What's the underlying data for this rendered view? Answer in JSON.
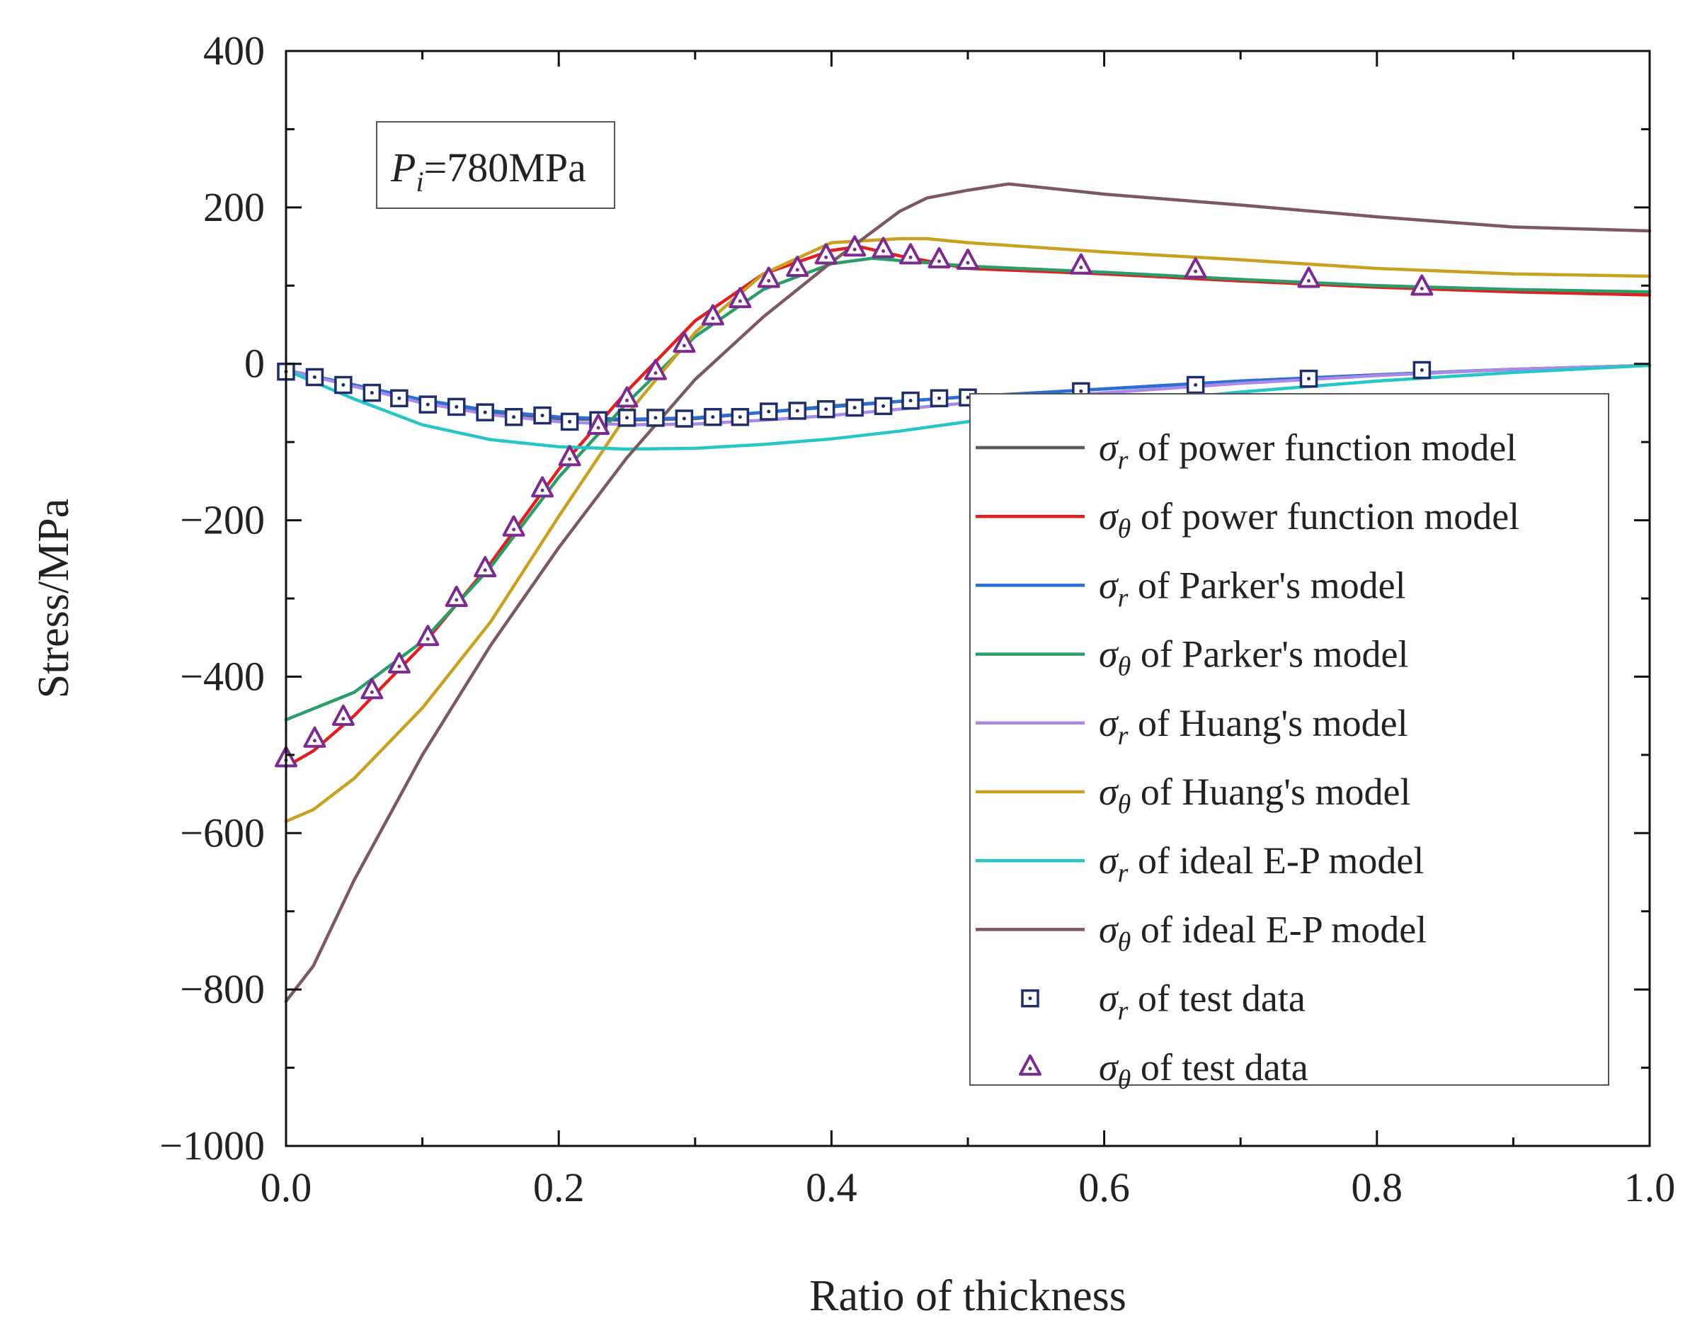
{
  "chart_data": {
    "type": "line",
    "title": "",
    "xlabel": "Ratio of thickness",
    "ylabel": "Stress/MPa",
    "xlim": [
      0.0,
      1.0
    ],
    "ylim": [
      -1000,
      400
    ],
    "xticks": [
      0.0,
      0.2,
      0.4,
      0.6,
      0.8,
      1.0
    ],
    "xtick_labels": [
      "0.0",
      "0.2",
      "0.4",
      "0.6",
      "0.8",
      "1.0"
    ],
    "yticks": [
      -1000,
      -800,
      -600,
      -400,
      -200,
      0,
      200,
      400
    ],
    "ytick_labels": [
      "−1000",
      "−800",
      "−600",
      "−400",
      "−200",
      "0",
      "200",
      "400"
    ],
    "grid": false,
    "legend_position": "bottom-right",
    "annotation": {
      "symbol": "P",
      "subscript": "i",
      "text": "=780MPa"
    },
    "series": [
      {
        "name": "σr of power function model",
        "symbol": "σ",
        "subscript": "r",
        "suffix": " of power function model",
        "color": "#5a5a5a",
        "kind": "line",
        "x": [
          0,
          0.05,
          0.1,
          0.15,
          0.2,
          0.25,
          0.3,
          0.35,
          0.4,
          0.45,
          0.5,
          0.6,
          0.7,
          0.8,
          0.9,
          1.0
        ],
        "y": [
          -8,
          -28,
          -48,
          -62,
          -70,
          -72,
          -70,
          -62,
          -54,
          -48,
          -42,
          -32,
          -22,
          -14,
          -7,
          -2
        ]
      },
      {
        "name": "σθ of power function model",
        "symbol": "σ",
        "subscript": "θ",
        "suffix": " of power function model",
        "color": "#e02020",
        "kind": "line",
        "x": [
          0,
          0.02,
          0.05,
          0.1,
          0.15,
          0.2,
          0.25,
          0.3,
          0.35,
          0.4,
          0.42,
          0.45,
          0.5,
          0.6,
          0.7,
          0.8,
          0.9,
          1.0
        ],
        "y": [
          -515,
          -495,
          -450,
          -360,
          -255,
          -135,
          -35,
          55,
          115,
          145,
          150,
          138,
          122,
          115,
          106,
          98,
          92,
          88
        ]
      },
      {
        "name": "σr of Parker's model",
        "symbol": "σ",
        "subscript": "r",
        "suffix": " of Parker's model",
        "color": "#2a6fd6",
        "kind": "line",
        "x": [
          0,
          0.05,
          0.1,
          0.15,
          0.2,
          0.25,
          0.3,
          0.35,
          0.4,
          0.45,
          0.5,
          0.6,
          0.7,
          0.8,
          0.9,
          1.0
        ],
        "y": [
          -8,
          -27,
          -46,
          -60,
          -68,
          -71,
          -69,
          -62,
          -55,
          -48,
          -42,
          -32,
          -22,
          -14,
          -7,
          -2
        ]
      },
      {
        "name": "σθ of Parker's model",
        "symbol": "σ",
        "subscript": "θ",
        "suffix": " of Parker's model",
        "color": "#2a9d6b",
        "kind": "line",
        "x": [
          0,
          0.05,
          0.1,
          0.15,
          0.2,
          0.25,
          0.3,
          0.35,
          0.4,
          0.43,
          0.45,
          0.5,
          0.6,
          0.7,
          0.8,
          0.9,
          1.0
        ],
        "y": [
          -455,
          -420,
          -355,
          -260,
          -145,
          -50,
          35,
          95,
          128,
          135,
          132,
          125,
          117,
          108,
          100,
          95,
          92
        ]
      },
      {
        "name": "σr of Huang's model",
        "symbol": "σ",
        "subscript": "r",
        "suffix": " of Huang's model",
        "color": "#a98ae8",
        "kind": "line",
        "x": [
          0,
          0.05,
          0.1,
          0.15,
          0.2,
          0.25,
          0.3,
          0.35,
          0.4,
          0.45,
          0.5,
          0.6,
          0.7,
          0.8,
          0.9,
          1.0
        ],
        "y": [
          -8,
          -29,
          -50,
          -65,
          -74,
          -78,
          -77,
          -72,
          -66,
          -58,
          -50,
          -37,
          -25,
          -15,
          -7,
          -2
        ]
      },
      {
        "name": "σθ of Huang's model",
        "symbol": "σ",
        "subscript": "θ",
        "suffix": " of Huang's model",
        "color": "#c9a020",
        "kind": "line",
        "x": [
          0,
          0.02,
          0.05,
          0.1,
          0.15,
          0.2,
          0.25,
          0.3,
          0.35,
          0.4,
          0.45,
          0.47,
          0.5,
          0.6,
          0.7,
          0.8,
          0.9,
          1.0
        ],
        "y": [
          -585,
          -570,
          -530,
          -440,
          -330,
          -195,
          -65,
          40,
          115,
          155,
          160,
          160,
          155,
          143,
          133,
          122,
          115,
          112
        ]
      },
      {
        "name": "σr of ideal E-P model",
        "symbol": "σ",
        "subscript": "r",
        "suffix": " of ideal E-P model",
        "color": "#26c6c6",
        "kind": "line",
        "x": [
          0,
          0.05,
          0.1,
          0.15,
          0.2,
          0.25,
          0.3,
          0.35,
          0.4,
          0.45,
          0.5,
          0.6,
          0.7,
          0.8,
          0.9,
          1.0
        ],
        "y": [
          -8,
          -45,
          -78,
          -97,
          -106,
          -109,
          -108,
          -103,
          -96,
          -86,
          -74,
          -53,
          -36,
          -22,
          -11,
          -2
        ]
      },
      {
        "name": "σθ of ideal E-P model",
        "symbol": "σ",
        "subscript": "θ",
        "suffix": " of ideal E-P model",
        "color": "#7a5a5e",
        "kind": "line",
        "x": [
          0,
          0.02,
          0.05,
          0.1,
          0.15,
          0.2,
          0.25,
          0.3,
          0.35,
          0.4,
          0.45,
          0.47,
          0.5,
          0.53,
          0.6,
          0.7,
          0.8,
          0.9,
          1.0
        ],
        "y": [
          -815,
          -770,
          -660,
          -500,
          -360,
          -235,
          -120,
          -20,
          60,
          130,
          195,
          212,
          222,
          230,
          217,
          203,
          188,
          175,
          170
        ]
      },
      {
        "name": "σr of test data",
        "symbol": "σ",
        "subscript": "r",
        "suffix": " of test data",
        "color": "#1f2d6b",
        "kind": "marker",
        "marker": "square",
        "x": [
          0.0,
          0.021,
          0.042,
          0.063,
          0.083,
          0.104,
          0.125,
          0.146,
          0.167,
          0.188,
          0.208,
          0.229,
          0.25,
          0.271,
          0.292,
          0.313,
          0.333,
          0.354,
          0.375,
          0.396,
          0.417,
          0.438,
          0.458,
          0.479,
          0.5,
          0.583,
          0.667,
          0.75,
          0.833
        ],
        "y": [
          -10,
          -17,
          -27,
          -37,
          -44,
          -52,
          -55,
          -62,
          -68,
          -66,
          -74,
          -72,
          -69,
          -69,
          -70,
          -68,
          -68,
          -61,
          -60,
          -58,
          -56,
          -54,
          -47,
          -44,
          -43,
          -35,
          -27,
          -19,
          -8
        ]
      },
      {
        "name": "σθ of test data",
        "symbol": "σ",
        "subscript": "θ",
        "suffix": " of test data",
        "color": "#7b2a8f",
        "kind": "marker",
        "marker": "triangle",
        "x": [
          0.0,
          0.021,
          0.042,
          0.063,
          0.083,
          0.104,
          0.125,
          0.146,
          0.167,
          0.188,
          0.208,
          0.229,
          0.25,
          0.271,
          0.292,
          0.313,
          0.333,
          0.354,
          0.375,
          0.396,
          0.417,
          0.438,
          0.458,
          0.479,
          0.5,
          0.583,
          0.667,
          0.75,
          0.833
        ],
        "y": [
          -505,
          -480,
          -452,
          -418,
          -385,
          -350,
          -300,
          -262,
          -210,
          -160,
          -120,
          -80,
          -45,
          -10,
          25,
          60,
          82,
          108,
          122,
          138,
          148,
          146,
          138,
          133,
          131,
          125,
          120,
          108,
          98
        ]
      }
    ]
  }
}
